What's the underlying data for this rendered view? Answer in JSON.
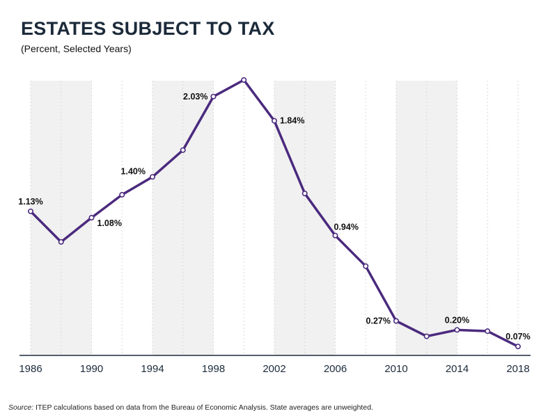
{
  "title": "ESTATES SUBJECT TO TAX",
  "subtitle": "(Percent, Selected Years)",
  "source": {
    "label": "Source:",
    "text": "ITEP calculations based on data from the Bureau of Economic Analysis. State averages are unweighted."
  },
  "colors": {
    "line": "#4b2a7e",
    "band": "#f1f1f1",
    "axis": "#1b2a3a",
    "grid": "#d9d9d9"
  },
  "chart_data": {
    "type": "line",
    "title": "ESTATES SUBJECT TO TAX",
    "subtitle": "(Percent, Selected Years)",
    "xlabel": "",
    "ylabel": "",
    "xlim": [
      1986,
      2018
    ],
    "ylim": [
      0,
      2.1
    ],
    "x_ticks": [
      "1986",
      "1990",
      "1994",
      "1998",
      "2002",
      "2006",
      "2010",
      "2014",
      "2018"
    ],
    "grid": true,
    "legend": "none",
    "shaded_bands": [
      [
        1986,
        1990
      ],
      [
        1994,
        1998
      ],
      [
        2002,
        2006
      ],
      [
        2010,
        2014
      ]
    ],
    "series": [
      {
        "x": [
          1986,
          1988,
          1990,
          1992,
          1994,
          1996,
          1998,
          2000,
          2002,
          2004,
          2006,
          2008,
          2010,
          2012,
          2014,
          2016,
          2018
        ],
        "values": [
          1.13,
          0.89,
          1.08,
          1.26,
          1.4,
          1.61,
          2.03,
          2.16,
          1.84,
          1.27,
          0.94,
          0.7,
          0.27,
          0.15,
          0.2,
          0.19,
          0.07
        ]
      }
    ],
    "annotations": [
      {
        "x": 1986,
        "y": 1.13,
        "text": "1.13%",
        "pos": "above"
      },
      {
        "x": 1990,
        "y": 1.08,
        "text": "1.08%",
        "pos": "below-right"
      },
      {
        "x": 1994,
        "y": 1.4,
        "text": "1.40%",
        "pos": "above-left"
      },
      {
        "x": 1998,
        "y": 2.03,
        "text": "2.03%",
        "pos": "left"
      },
      {
        "x": 2002,
        "y": 1.84,
        "text": "1.84%",
        "pos": "right"
      },
      {
        "x": 2006,
        "y": 0.94,
        "text": "0.94%",
        "pos": "above-right"
      },
      {
        "x": 2010,
        "y": 0.27,
        "text": "0.27%",
        "pos": "left"
      },
      {
        "x": 2014,
        "y": 0.2,
        "text": "0.20%",
        "pos": "above"
      },
      {
        "x": 2018,
        "y": 0.07,
        "text": "0.07%",
        "pos": "above"
      }
    ]
  }
}
